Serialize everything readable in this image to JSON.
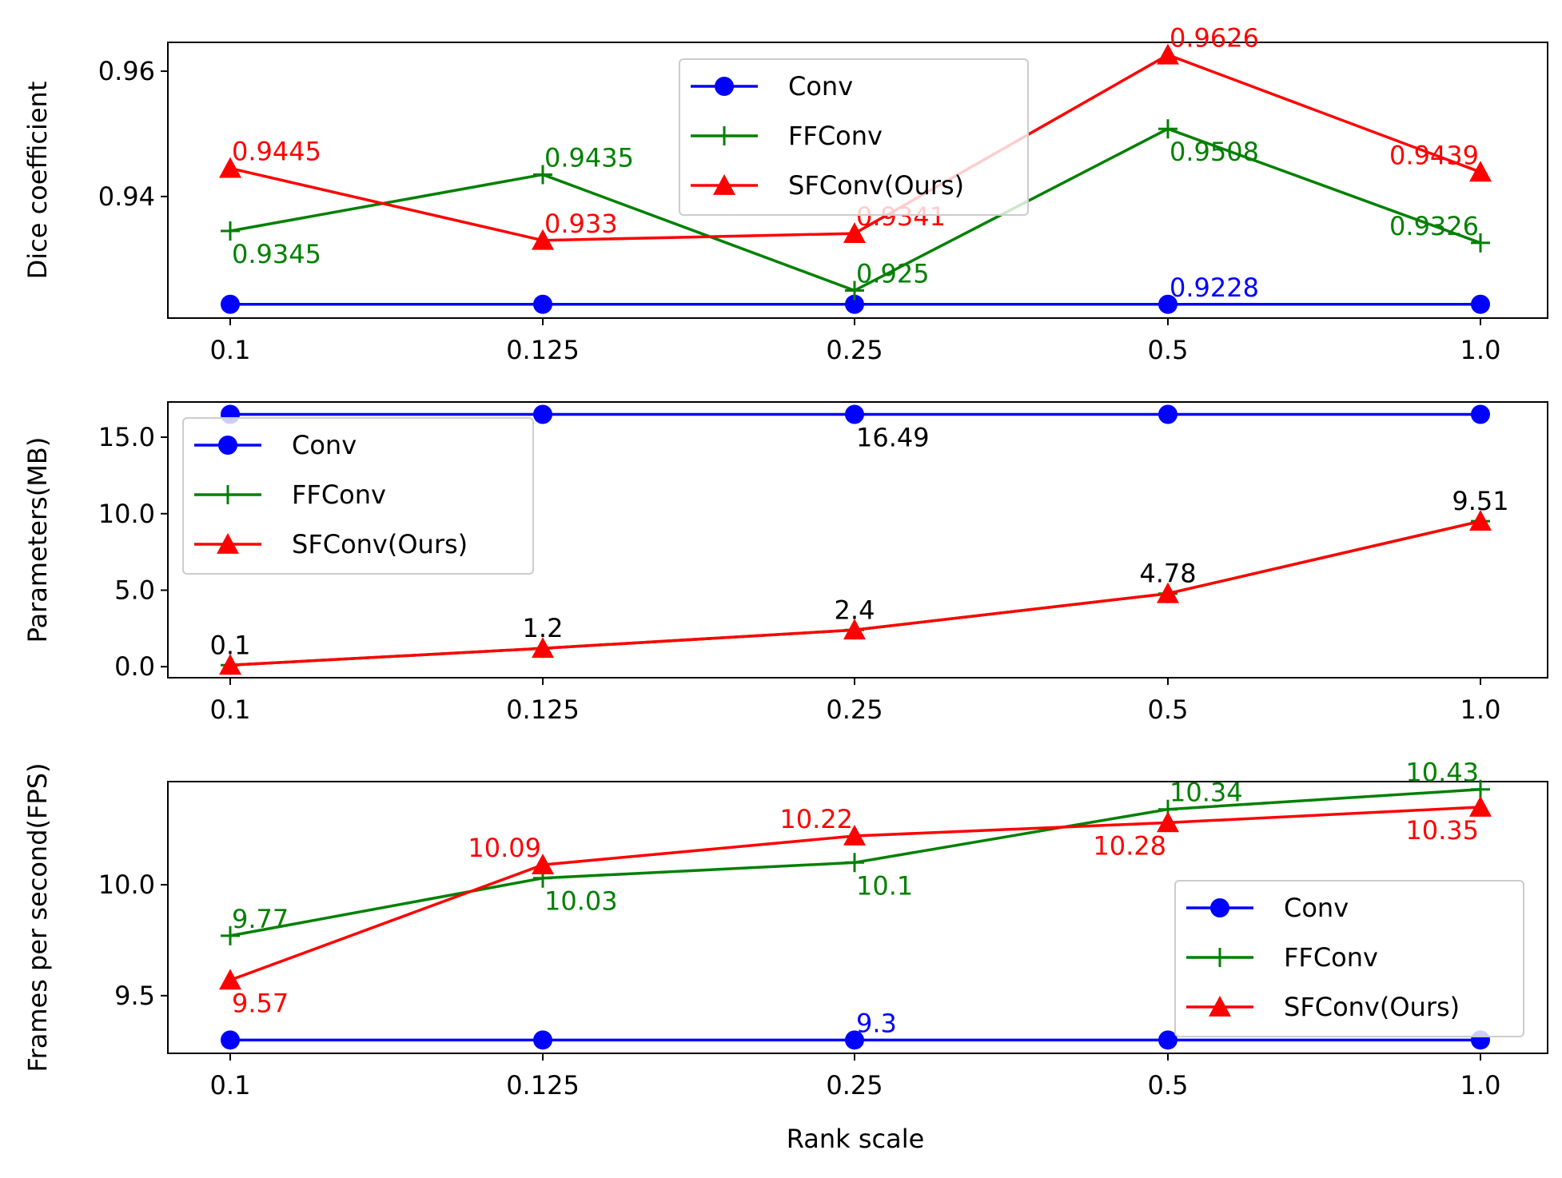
{
  "chart_data": [
    {
      "type": "line",
      "categories": [
        "0.1",
        "0.125",
        "0.25",
        "0.5",
        "1.0"
      ],
      "xlabel": "",
      "ylabel": "Dice coefficient",
      "ylim": [
        0.9206,
        0.9646
      ],
      "yticks": [
        {
          "value": 0.94,
          "label": "0.94"
        },
        {
          "value": 0.96,
          "label": "0.96"
        }
      ],
      "legend": "top-center",
      "series": [
        {
          "name": "Conv",
          "color": "#0000ff",
          "marker": "circle",
          "values": [
            0.9228,
            0.9228,
            0.9228,
            0.9228,
            0.9228
          ],
          "labels": [
            {
              "i": 3,
              "text": "0.9228",
              "pos": "above-right"
            }
          ]
        },
        {
          "name": "FFConv",
          "color": "#008000",
          "marker": "plus",
          "values": [
            0.9345,
            0.9435,
            0.925,
            0.9508,
            0.9326
          ],
          "labels": [
            {
              "i": 0,
              "text": "0.9345",
              "pos": "below-right"
            },
            {
              "i": 1,
              "text": "0.9435",
              "pos": "above-right"
            },
            {
              "i": 2,
              "text": "0.925",
              "pos": "above-right"
            },
            {
              "i": 3,
              "text": "0.9508",
              "pos": "below-right"
            },
            {
              "i": 4,
              "text": "0.9326",
              "pos": "above-left"
            }
          ]
        },
        {
          "name": "SFConv(Ours)",
          "color": "#ff0000",
          "marker": "triangle",
          "values": [
            0.9445,
            0.933,
            0.9341,
            0.9626,
            0.9439
          ],
          "labels": [
            {
              "i": 0,
              "text": "0.9445",
              "pos": "above-right"
            },
            {
              "i": 1,
              "text": "0.933",
              "pos": "above-right"
            },
            {
              "i": 2,
              "text": "0.9341",
              "pos": "above-right"
            },
            {
              "i": 3,
              "text": "0.9626",
              "pos": "above-right"
            },
            {
              "i": 4,
              "text": "0.9439",
              "pos": "above-left"
            }
          ]
        }
      ]
    },
    {
      "type": "line",
      "categories": [
        "0.1",
        "0.125",
        "0.25",
        "0.5",
        "1.0"
      ],
      "xlabel": "",
      "ylabel": "Parameters(MB)",
      "ylim": [
        -0.72,
        17.3
      ],
      "yticks": [
        {
          "value": 0,
          "label": "0.0"
        },
        {
          "value": 5,
          "label": "5.0"
        },
        {
          "value": 10,
          "label": "10.0"
        },
        {
          "value": 15,
          "label": "15.0"
        }
      ],
      "legend": "top-left",
      "series": [
        {
          "name": "Conv",
          "color": "#0000ff",
          "marker": "circle",
          "values": [
            16.49,
            16.49,
            16.49,
            16.49,
            16.49
          ],
          "labels": [
            {
              "i": 2,
              "text": "16.49",
              "pos": "below-right",
              "color": "#000000"
            }
          ]
        },
        {
          "name": "FFConv",
          "color": "#008000",
          "marker": "plus",
          "values": [
            0.1,
            1.2,
            2.4,
            4.78,
            9.51
          ],
          "labels": []
        },
        {
          "name": "SFConv(Ours)",
          "color": "#ff0000",
          "marker": "triangle",
          "values": [
            0.1,
            1.2,
            2.4,
            4.78,
            9.51
          ],
          "labels": [
            {
              "i": 0,
              "text": "0.1",
              "pos": "above",
              "color": "#000000"
            },
            {
              "i": 1,
              "text": "1.2",
              "pos": "above",
              "color": "#000000"
            },
            {
              "i": 2,
              "text": "2.4",
              "pos": "above",
              "color": "#000000"
            },
            {
              "i": 3,
              "text": "4.78",
              "pos": "above",
              "color": "#000000"
            },
            {
              "i": 4,
              "text": "9.51",
              "pos": "above",
              "color": "#000000"
            }
          ]
        }
      ]
    },
    {
      "type": "line",
      "categories": [
        "0.1",
        "0.125",
        "0.25",
        "0.5",
        "1.0"
      ],
      "xlabel": "Rank scale",
      "ylabel": "Frames per second(FPS)",
      "ylim": [
        9.24,
        10.465
      ],
      "yticks": [
        {
          "value": 9.5,
          "label": "9.5"
        },
        {
          "value": 10.0,
          "label": "10.0"
        }
      ],
      "legend": "bottom-right",
      "series": [
        {
          "name": "Conv",
          "color": "#0000ff",
          "marker": "circle",
          "values": [
            9.3,
            9.3,
            9.3,
            9.3,
            9.3
          ],
          "labels": [
            {
              "i": 2,
              "text": "9.3",
              "pos": "above-right"
            }
          ]
        },
        {
          "name": "FFConv",
          "color": "#008000",
          "marker": "plus",
          "values": [
            9.77,
            10.03,
            10.1,
            10.34,
            10.43
          ],
          "labels": [
            {
              "i": 0,
              "text": "9.77",
              "pos": "above-right"
            },
            {
              "i": 1,
              "text": "10.03",
              "pos": "below-right"
            },
            {
              "i": 2,
              "text": "10.1",
              "pos": "below-right"
            },
            {
              "i": 3,
              "text": "10.34",
              "pos": "above-right"
            },
            {
              "i": 4,
              "text": "10.43",
              "pos": "above-left"
            }
          ]
        },
        {
          "name": "SFConv(Ours)",
          "color": "#ff0000",
          "marker": "triangle",
          "values": [
            9.57,
            10.09,
            10.22,
            10.28,
            10.35
          ],
          "labels": [
            {
              "i": 0,
              "text": "9.57",
              "pos": "below-right"
            },
            {
              "i": 1,
              "text": "10.09",
              "pos": "above-left"
            },
            {
              "i": 2,
              "text": "10.22",
              "pos": "above-left"
            },
            {
              "i": 3,
              "text": "10.28",
              "pos": "below-left"
            },
            {
              "i": 4,
              "text": "10.35",
              "pos": "below-left"
            }
          ]
        }
      ]
    }
  ]
}
